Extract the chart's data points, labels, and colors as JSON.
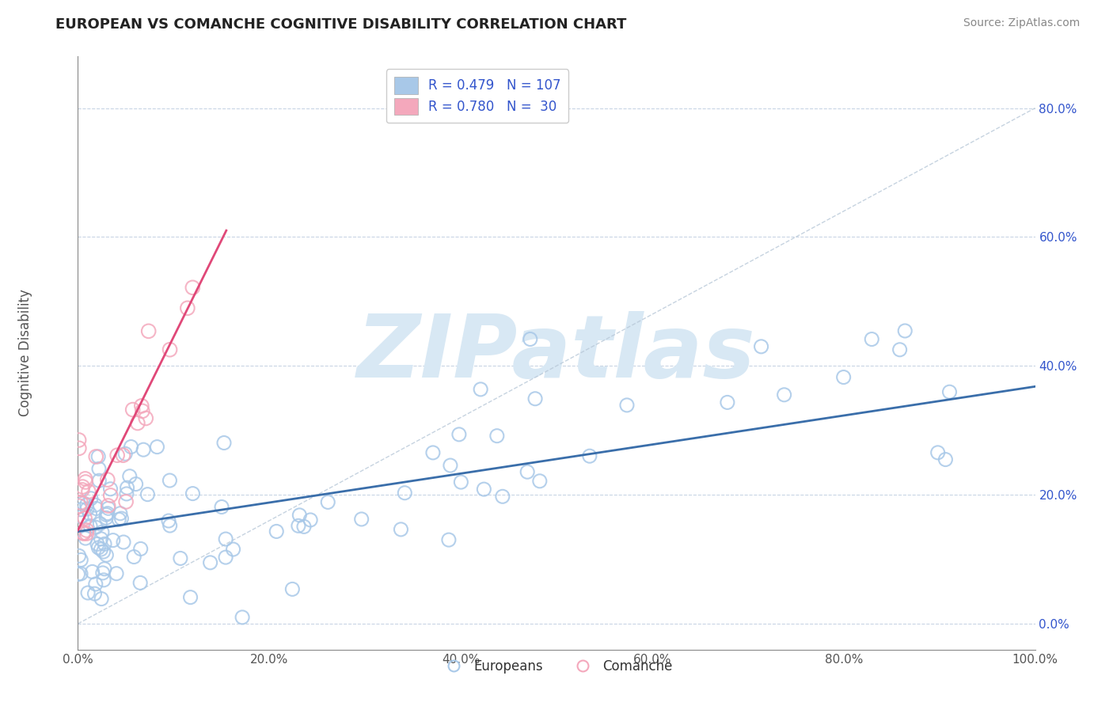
{
  "title": "EUROPEAN VS COMANCHE COGNITIVE DISABILITY CORRELATION CHART",
  "source": "Source: ZipAtlas.com",
  "ylabel": "Cognitive Disability",
  "xlim": [
    0,
    1.0
  ],
  "ylim": [
    -0.04,
    0.88
  ],
  "xticks": [
    0.0,
    0.2,
    0.4,
    0.6,
    0.8,
    1.0
  ],
  "yticks": [
    0.0,
    0.2,
    0.4,
    0.6,
    0.8
  ],
  "ytick_labels": [
    "0.0%",
    "20.0%",
    "40.0%",
    "60.0%",
    "80.0%"
  ],
  "xtick_labels": [
    "0.0%",
    "20.0%",
    "40.0%",
    "60.0%",
    "80.0%",
    "100.0%"
  ],
  "legend_r_blue": "R = 0.479",
  "legend_n_blue": "N = 107",
  "legend_r_pink": "R = 0.780",
  "legend_n_pink": "N =  30",
  "blue_color": "#a8c8e8",
  "pink_color": "#f4a8bc",
  "blue_line_color": "#3a6eaa",
  "pink_line_color": "#e04878",
  "watermark_color": "#d8e8f4",
  "background_color": "#ffffff",
  "grid_color": "#c8d4e4",
  "title_color": "#222222",
  "axis_color": "#888888",
  "tick_color": "#555555",
  "legend_text_color": "#3355cc"
}
